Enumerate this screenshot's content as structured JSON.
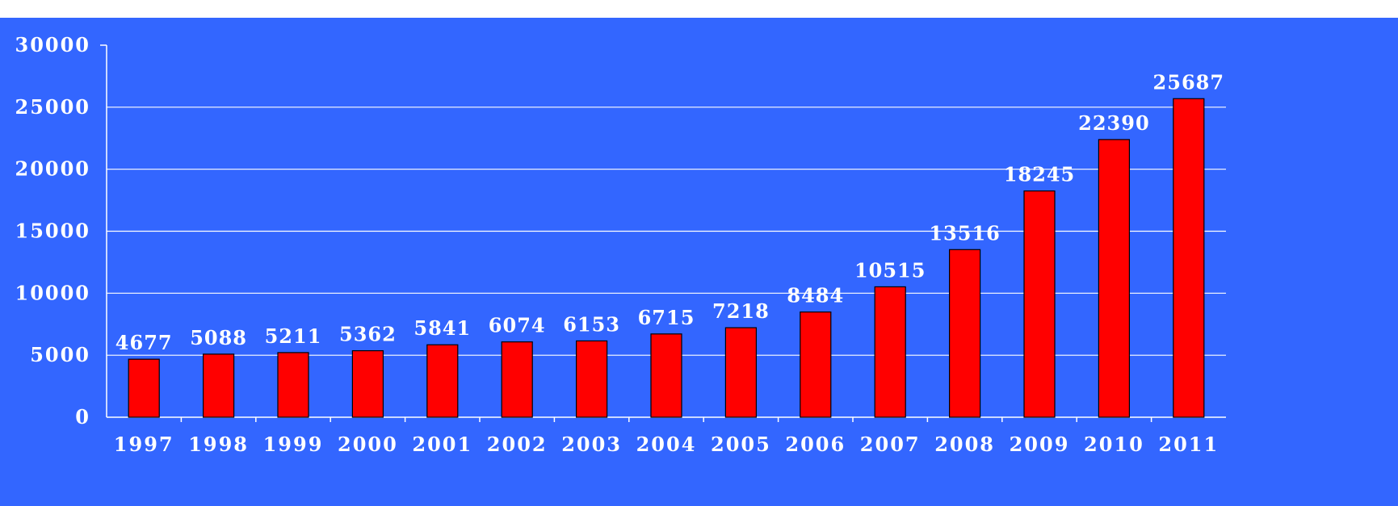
{
  "colors": {
    "background": "#3366ff",
    "bar_fill": "#ff0000",
    "bar_stroke": "#000000",
    "text": "#ffffff",
    "gridline": "#ffffff",
    "header_fragment": "#1a1a1a"
  },
  "chart_data": {
    "type": "bar",
    "categories": [
      "1997",
      "1998",
      "1999",
      "2000",
      "2001",
      "2002",
      "2003",
      "2004",
      "2005",
      "2006",
      "2007",
      "2008",
      "2009",
      "2010",
      "2011"
    ],
    "series": [
      {
        "values": [
          4677,
          5088,
          5211,
          5362,
          5841,
          6074,
          6153,
          6715,
          7218,
          8484,
          10515,
          13516,
          18245,
          22390,
          25687
        ]
      }
    ],
    "data_labels": [
      "4677",
      "5088",
      "5211",
      "5362",
      "5841",
      "6074",
      "6153",
      "6715",
      "7218",
      "8484",
      "10515",
      "13516",
      "18245",
      "22390",
      "25687"
    ],
    "ylim": [
      0,
      30000
    ],
    "yticks": [
      0,
      5000,
      10000,
      15000,
      20000,
      25000,
      30000
    ],
    "ytick_labels": [
      "0",
      "5000",
      "10000",
      "15000",
      "20000",
      "25000",
      "30000"
    ],
    "grid": true,
    "legend": "none"
  }
}
